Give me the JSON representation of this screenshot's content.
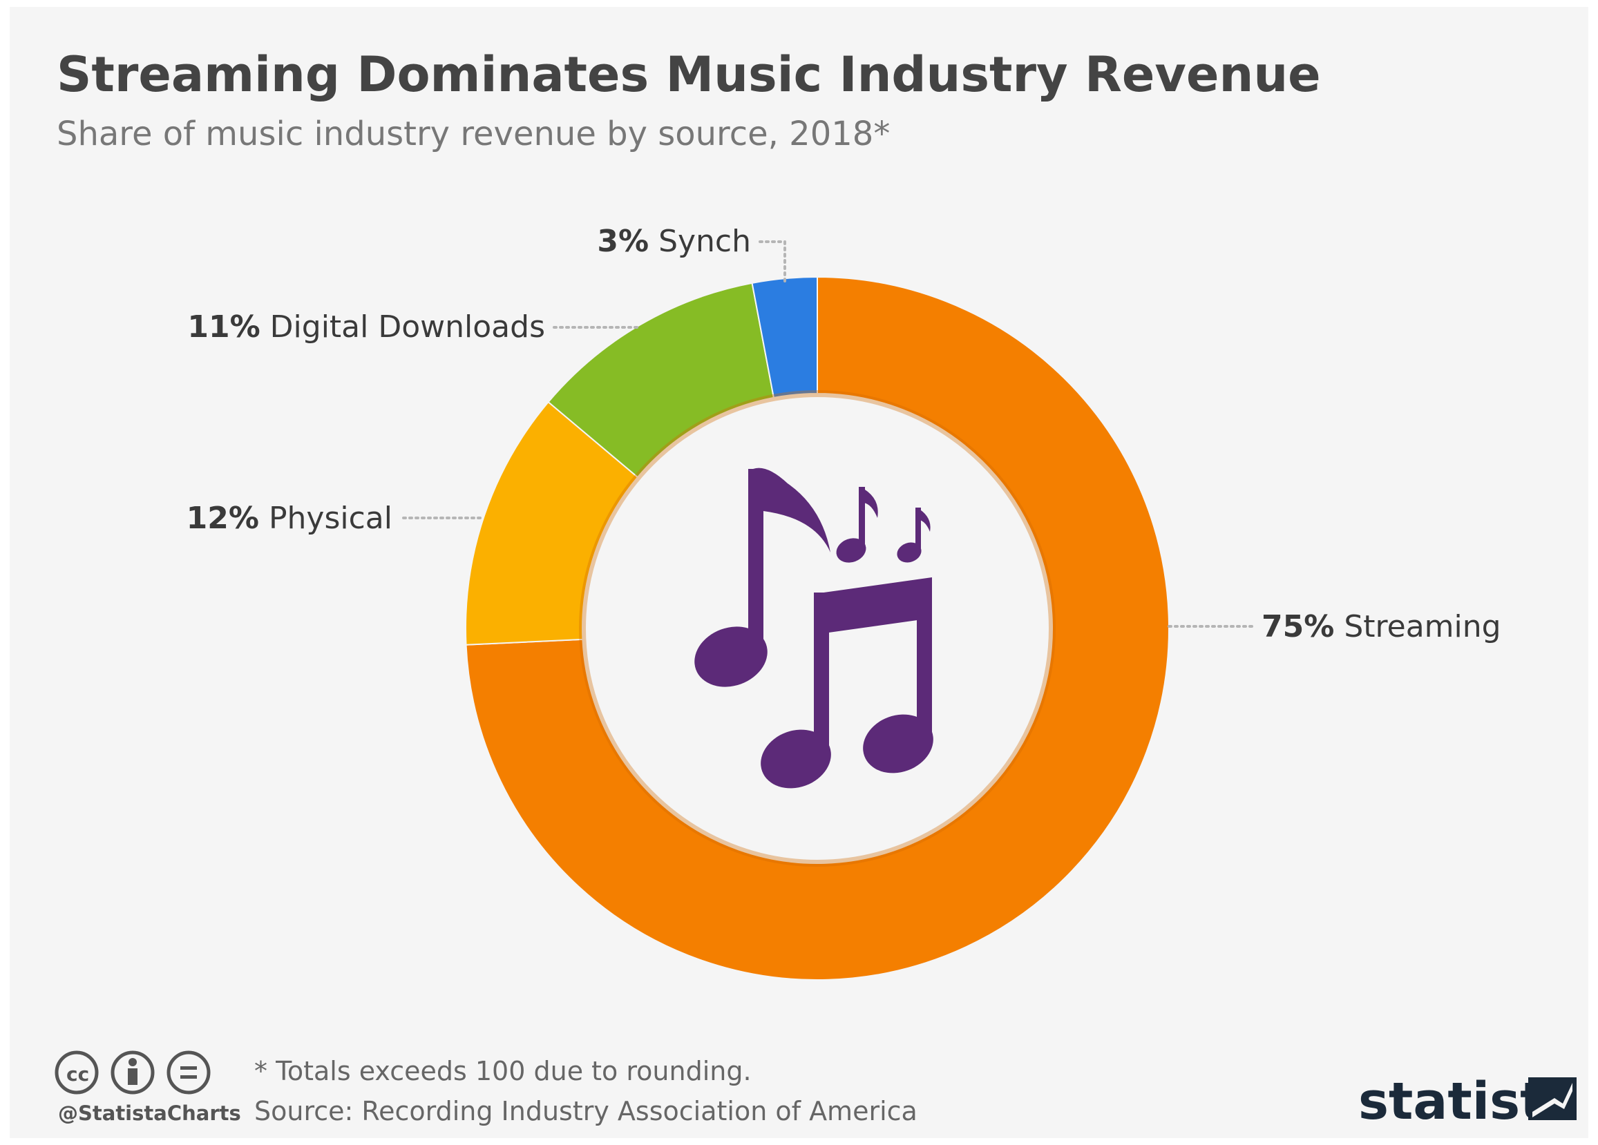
{
  "chart_data": {
    "type": "donut",
    "title": "Streaming Dominates Music Industry Revenue",
    "subtitle": "Share of music industry revenue by source, 2018*",
    "categories": [
      "Streaming",
      "Physical",
      "Digital Downloads",
      "Synch"
    ],
    "values": [
      75,
      12,
      11,
      3
    ],
    "value_labels": [
      "75%",
      "12%",
      "11%",
      "3%"
    ],
    "colors": [
      "#f47f00",
      "#fbb000",
      "#86bc25",
      "#2b7de1"
    ],
    "note": "* Totals exceeds 100 due to rounding.",
    "source": "Source: Recording Industry Association of America",
    "credit": "@StatistaCharts",
    "brand": "statista"
  }
}
